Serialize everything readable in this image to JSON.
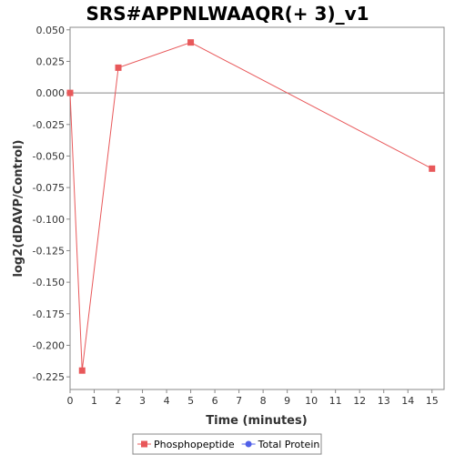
{
  "chart_data": {
    "type": "line",
    "title": "SRS#APPNLWAAQR(+ 3)_v1",
    "xlabel": "Time (minutes)",
    "ylabel": "log2(dDAVP/Control)",
    "xlim": [
      0,
      15.5
    ],
    "ylim": [
      -0.235,
      0.052
    ],
    "x_ticks": [
      0,
      1,
      2,
      3,
      4,
      5,
      6,
      7,
      8,
      9,
      10,
      11,
      12,
      13,
      14,
      15
    ],
    "y_ticks": [
      0.05,
      0.025,
      0.0,
      -0.025,
      -0.05,
      -0.075,
      -0.1,
      -0.125,
      -0.15,
      -0.175,
      -0.2,
      -0.225
    ],
    "y_tick_labels": [
      "0.050",
      "0.025",
      "0.000",
      "-0.025",
      "-0.050",
      "-0.075",
      "-0.100",
      "-0.125",
      "-0.150",
      "-0.175",
      "-0.200",
      "-0.225"
    ],
    "zero_line": true,
    "grid": false,
    "legend_position": "bottom",
    "series": [
      {
        "name": "Phosphopeptide",
        "color": "#e8585a",
        "marker": "square",
        "x": [
          0,
          0.5,
          2,
          5,
          15
        ],
        "y": [
          0.0,
          -0.22,
          0.02,
          0.04,
          -0.06
        ]
      },
      {
        "name": "Total Protein",
        "color": "#5060e8",
        "marker": "circle",
        "x": [],
        "y": []
      }
    ]
  }
}
